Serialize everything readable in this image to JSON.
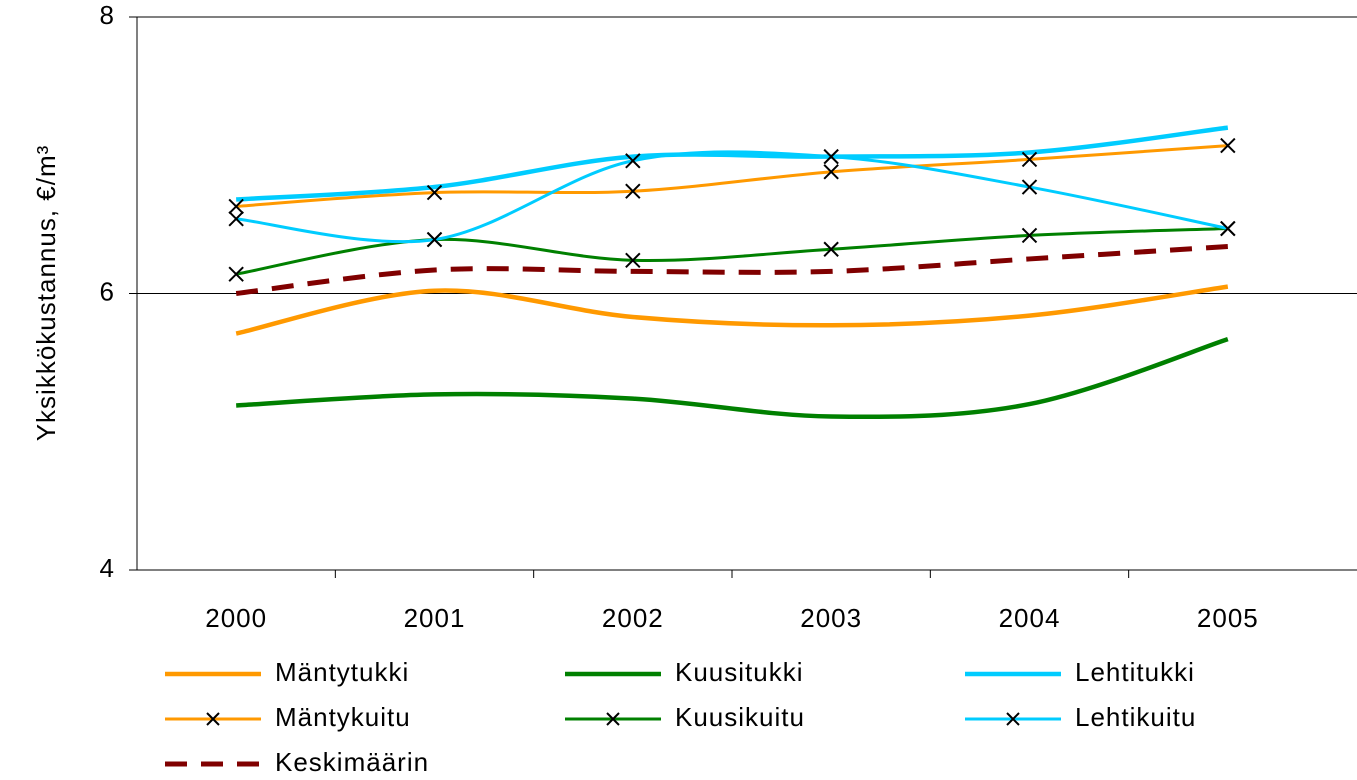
{
  "chart_data": {
    "type": "line",
    "y_label": "Yksikkökustannus, €/m³",
    "categories": [
      "2000",
      "2001",
      "2002",
      "2003",
      "2004",
      "2005"
    ],
    "ylim": [
      4,
      8
    ],
    "yticks": [
      4,
      6,
      8
    ],
    "grid": true,
    "series": [
      {
        "name": "Mäntytukki",
        "color": "#ff9900",
        "style": "solid",
        "values": [
          5.71,
          6.02,
          5.83,
          5.77,
          5.84,
          6.05
        ]
      },
      {
        "name": "Kuusitukki",
        "color": "#008000",
        "style": "solid",
        "values": [
          5.19,
          5.27,
          5.24,
          5.11,
          5.2,
          5.67
        ]
      },
      {
        "name": "Lehtitukki",
        "color": "#00ccff",
        "style": "solid",
        "values": [
          6.68,
          6.77,
          6.99,
          6.99,
          7.02,
          7.2
        ]
      },
      {
        "name": "Mäntykuitu",
        "color": "#ff9900",
        "style": "solid",
        "marker": "x",
        "values": [
          6.63,
          6.73,
          6.74,
          6.88,
          6.97,
          7.07
        ]
      },
      {
        "name": "Kuusikuitu",
        "color": "#008000",
        "style": "solid",
        "marker": "x",
        "values": [
          6.14,
          6.39,
          6.24,
          6.32,
          6.42,
          6.47
        ]
      },
      {
        "name": "Lehtikuitu",
        "color": "#00ccff",
        "style": "solid",
        "marker": "x",
        "values": [
          6.54,
          6.39,
          6.96,
          6.99,
          6.77,
          6.47
        ]
      },
      {
        "name": "Keskimäärin",
        "color": "#800000",
        "style": "dashed",
        "values": [
          6.0,
          6.17,
          6.16,
          6.16,
          6.25,
          6.34
        ]
      }
    ]
  }
}
